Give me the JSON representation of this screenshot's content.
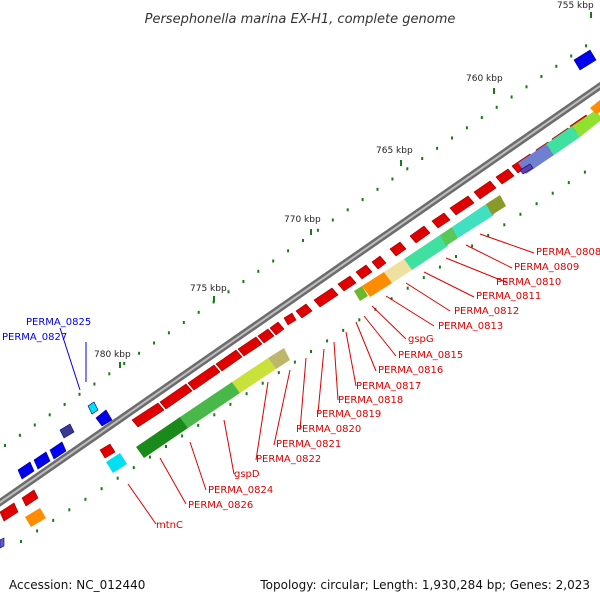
{
  "title": "Persephonella marina EX-H1, complete genome",
  "ticks": [
    "755 kbp",
    "760 kbp",
    "765 kbp",
    "770 kbp",
    "775 kbp",
    "780 kbp"
  ],
  "labels_forward": [
    "PERMA_0825",
    "PERMA_0827"
  ],
  "labels_reverse": [
    "PERMA_0808",
    "PERMA_0809",
    "PERMA_0810",
    "PERMA_0811",
    "PERMA_0812",
    "PERMA_0813",
    "gspG",
    "PERMA_0815",
    "PERMA_0816",
    "PERMA_0817",
    "PERMA_0818",
    "PERMA_0819",
    "PERMA_0820",
    "PERMA_0821",
    "PERMA_0822",
    "gspD",
    "PERMA_0824",
    "PERMA_0826",
    "mtnC"
  ],
  "footer": {
    "accession": "Accession: NC_012440",
    "summary": "Topology: circular; Length: 1,930,284 bp; Genes: 2,023"
  },
  "colors": {
    "forward_strand": "#0000ee",
    "reverse_strand": "#dd0000",
    "backbone": "#888888",
    "tick": "#1a7a1a"
  }
}
